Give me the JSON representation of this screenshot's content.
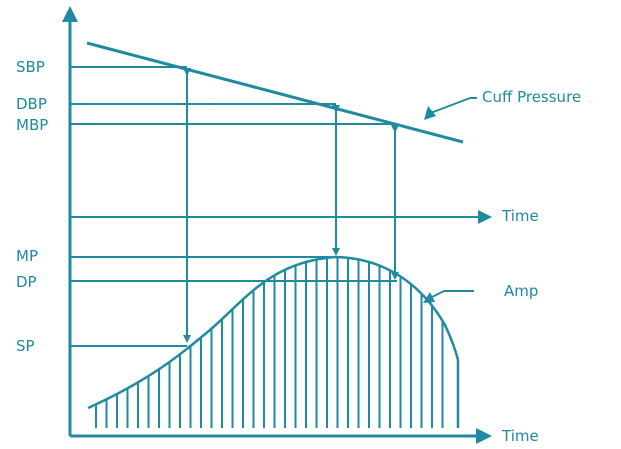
{
  "color": "#1f8aa0",
  "labels": {
    "sbp": "SBP",
    "dbp": "DBP",
    "mbp": "MBP",
    "mp": "MP",
    "dp": "DP",
    "sp": "SP",
    "cuff_pressure": "Cuff Pressure",
    "time_upper": "Time",
    "time_lower": "Time",
    "amp": "Amp"
  }
}
